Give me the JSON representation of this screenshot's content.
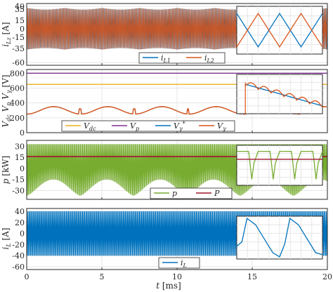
{
  "colors": {
    "blue": "#0072BD",
    "orange": "#D95319",
    "yellow": "#EDB120",
    "purple": "#7E2F8E",
    "green": "#77AC30",
    "red": "#A2142F",
    "grid": "#e6e6e6",
    "axis": "#262626"
  },
  "chart_data": [
    {
      "type": "line",
      "ylabel": "i_Lz [A]",
      "ylim": [
        -65,
        45
      ],
      "yticks": [
        "40",
        "35",
        "15",
        "0",
        "-15",
        "-35",
        "-60"
      ],
      "ytick_values": [
        40,
        35,
        15,
        0,
        -15,
        -35,
        -60
      ],
      "xlim": [
        0,
        20
      ],
      "grid": true,
      "series": [
        {
          "name": "i_L1",
          "color": "#0072BD",
          "amplitude": 37,
          "description_values": [
            -37,
            37
          ]
        },
        {
          "name": "i_L2",
          "color": "#D95319",
          "amplitude": 37,
          "description_values": [
            -37,
            37
          ]
        }
      ],
      "legend": {
        "placement": "bottom-center",
        "entries": [
          "iL1",
          "iL2"
        ]
      }
    },
    {
      "type": "line",
      "ylabel": "Vdc Vp Vγ [V]",
      "ylim": [
        0,
        850
      ],
      "yticks": [
        "800",
        "600",
        "400",
        "200",
        "0"
      ],
      "ytick_values": [
        800,
        600,
        400,
        200,
        0
      ],
      "xlim": [
        0,
        20
      ],
      "grid": true,
      "series": [
        {
          "name": "V_dc",
          "color": "#EDB120",
          "values": [
            650
          ]
        },
        {
          "name": "V_p",
          "color": "#7E2F8E",
          "values": [
            800
          ]
        },
        {
          "name": "V_γ*",
          "color": "#0072BD",
          "values": [
            250,
            320
          ]
        },
        {
          "name": "V_γ",
          "color": "#D95319",
          "values": [
            250,
            320
          ]
        }
      ],
      "legend": {
        "placement": "bottom-center",
        "entries": [
          "Vdc",
          "Vp",
          "Vγ*",
          "Vγ"
        ]
      }
    },
    {
      "type": "line",
      "ylabel": "p [kW]",
      "ylim": [
        -42,
        38
      ],
      "yticks": [
        "30",
        "15",
        "0",
        "-15",
        "-30"
      ],
      "ytick_values": [
        30,
        15,
        0,
        -15,
        -30
      ],
      "xlim": [
        0,
        20
      ],
      "grid": true,
      "series": [
        {
          "name": "p",
          "color": "#77AC30",
          "range": [
            -37,
            33
          ]
        },
        {
          "name": "P",
          "color": "#A2142F",
          "values": [
            16
          ]
        }
      ],
      "legend": {
        "placement": "bottom-center",
        "entries": [
          "p",
          "P"
        ]
      }
    },
    {
      "type": "line",
      "ylabel": "i_L [A]",
      "ylim": [
        -65,
        45
      ],
      "yticks": [
        "40",
        "20",
        "0",
        "-20",
        "-40",
        "-60"
      ],
      "ytick_values": [
        40,
        20,
        0,
        -20,
        -40,
        -60
      ],
      "xlim": [
        0,
        20
      ],
      "xticks": [
        "0",
        "5",
        "10",
        "15",
        "20"
      ],
      "xtick_values": [
        0,
        5,
        10,
        15,
        20
      ],
      "xlabel": "t [ms]",
      "grid": true,
      "series": [
        {
          "name": "i_L",
          "color": "#0072BD",
          "range": [
            -40,
            40
          ]
        }
      ],
      "legend": {
        "placement": "bottom-center",
        "entries": [
          "iL"
        ]
      }
    }
  ]
}
